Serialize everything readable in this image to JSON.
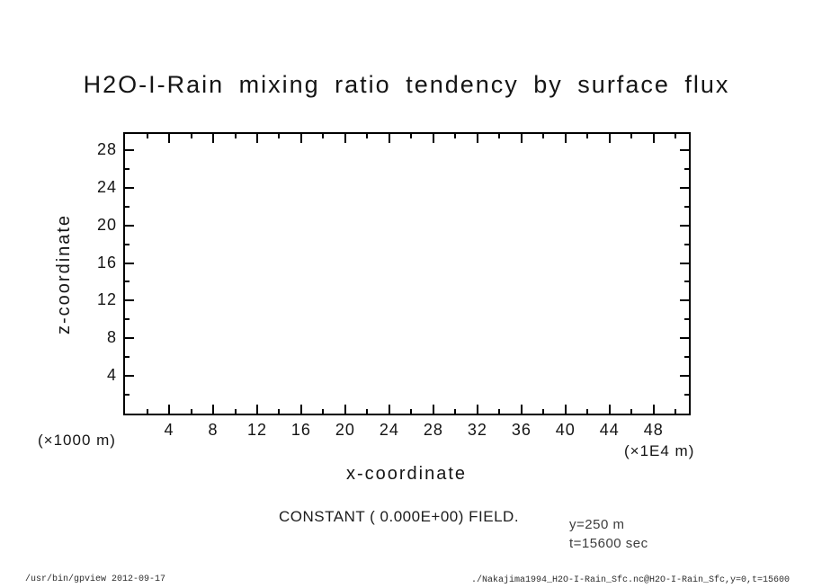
{
  "page": {
    "background": "#ffffff",
    "footer_left": "/usr/bin/gpview  2012-09-17",
    "footer_right": "./Nakajima1994_H2O-I-Rain_Sfc.nc@H2O-I-Rain_Sfc,y=0,t=15600"
  },
  "chart_data": {
    "type": "heatmap",
    "title": "H2O-I-Rain mixing ratio tendency by surface flux",
    "xlabel": "x-coordinate",
    "ylabel": "z-coordinate",
    "x_unit_label": "(×1E4 m)",
    "y_unit_label": "(×1000 m)",
    "xlim": [
      0,
      51.2
    ],
    "ylim": [
      0,
      29.7
    ],
    "x_major_ticks": [
      4,
      8,
      12,
      16,
      20,
      24,
      28,
      32,
      36,
      40,
      44,
      48
    ],
    "x_minor_step": 2,
    "y_major_ticks": [
      4,
      8,
      12,
      16,
      20,
      24,
      28
    ],
    "y_minor_step": 2,
    "grid": false,
    "legend": "none",
    "field": "constant",
    "constant_value": 0.0,
    "note": "CONSTANT ( 0.000E+00) FIELD.",
    "annotations": {
      "y_slice": "y=250 m",
      "time": "t=15600 sec"
    },
    "axis_color": "#000000",
    "text_color": "#151515",
    "annotation_color": "#3d3d3d",
    "tick_direction": "in"
  }
}
